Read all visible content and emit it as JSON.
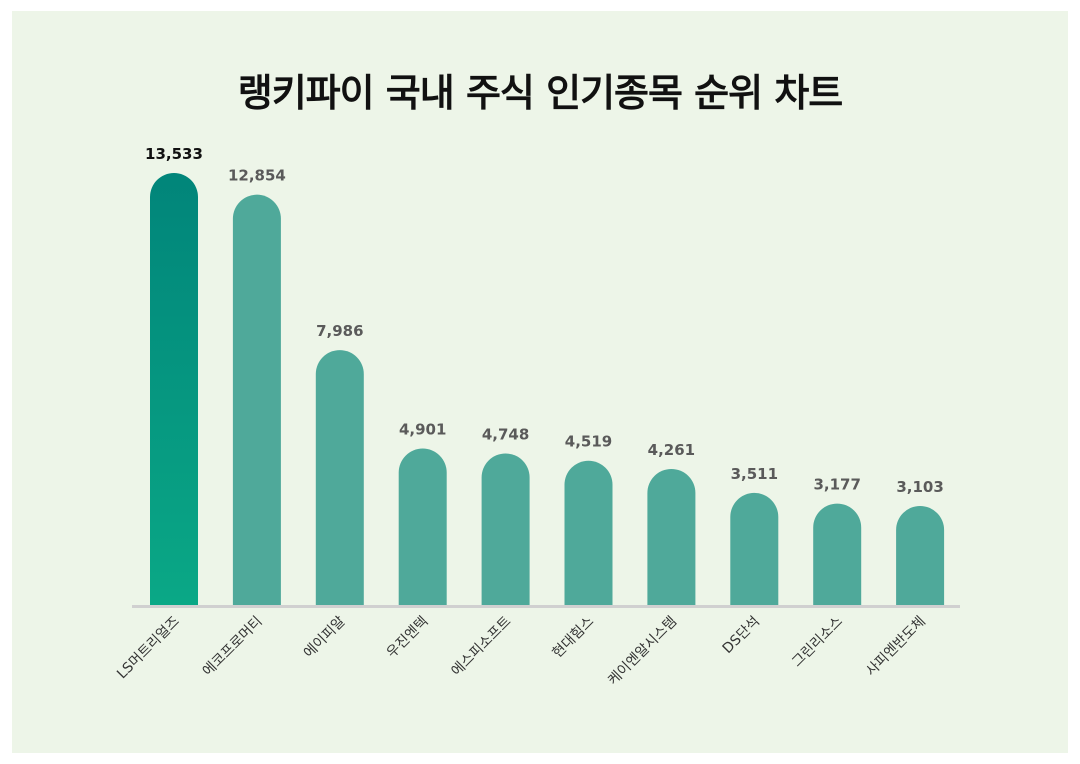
{
  "chart_data": {
    "type": "bar",
    "title": "랭키파이 국내 주식 인기종목 순위 차트",
    "xlabel": "",
    "ylabel": "",
    "categories": [
      "LS머트리얼즈",
      "에코프로머티",
      "에이피알",
      "우진엔텍",
      "에스피소프트",
      "현대힘스",
      "케이엔알시스템",
      "DS단석",
      "그린리소스",
      "사피엔반도체"
    ],
    "values": [
      13533,
      12854,
      7986,
      4901,
      4748,
      4519,
      4261,
      3511,
      3177,
      3103
    ],
    "value_labels": [
      "13,533",
      "12,854",
      "7,986",
      "4,901",
      "4,748",
      "4,519",
      "4,261",
      "3,511",
      "3,177",
      "3,103"
    ],
    "ylim": [
      0,
      13533
    ],
    "grid": false,
    "legend": "none",
    "colors": {
      "highlight_top": "#01857a",
      "highlight_bottom": "#0aa886",
      "bar": "#4fa99a",
      "axis": "#d0d0d0",
      "background": "#edf5e8"
    }
  }
}
